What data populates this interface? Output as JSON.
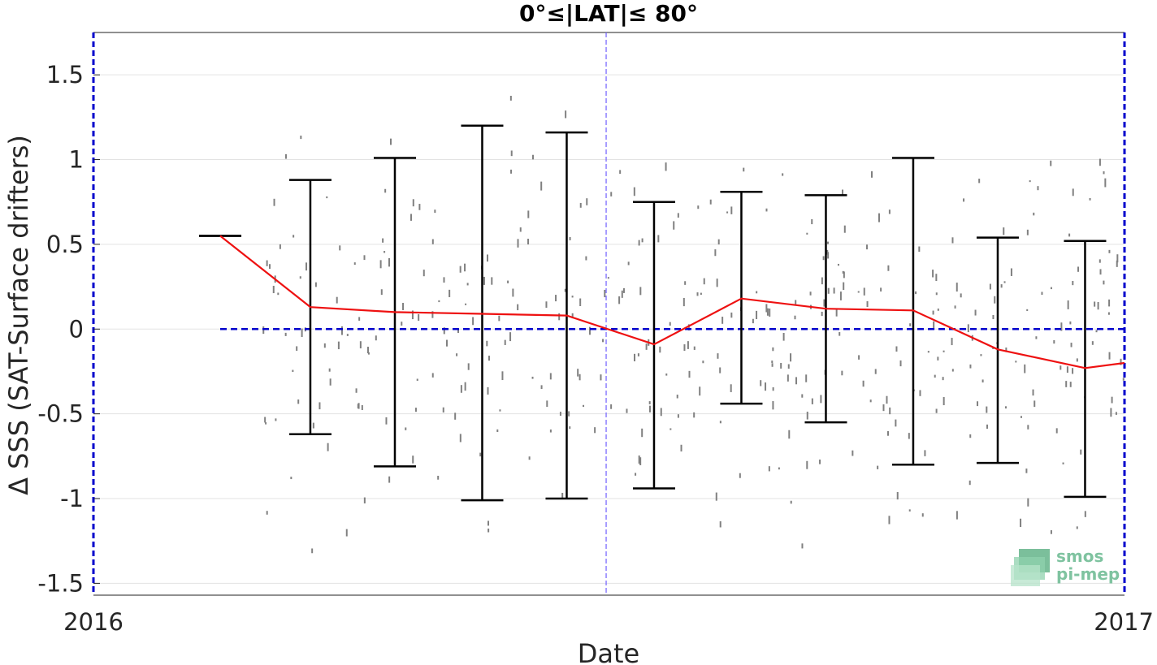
{
  "chart_data": {
    "type": "line",
    "title": "0°≤|LAT|≤ 80°",
    "xlabel": "Date",
    "ylabel": "Δ SSS (SAT-Surface drifters)",
    "x_tick_labels": [
      "2016",
      "2017"
    ],
    "y_ticks": [
      -1.5,
      -1,
      -0.5,
      0,
      0.5,
      1,
      1.5
    ],
    "y_tick_labels": [
      "-1.5",
      "-1",
      "-0.5",
      "0",
      "0.5",
      "1",
      "1.5"
    ],
    "ylim": [
      -1.57,
      1.75
    ],
    "xlim": [
      "2016-01-01",
      "2017-01-01"
    ],
    "grid": "horizontal",
    "series": [
      {
        "style": "red-line",
        "color": "#ee1111",
        "x": [
          "2016-02-15",
          "2016-03-18",
          "2016-04-17",
          "2016-05-18",
          "2016-06-17",
          "2016-07-18",
          "2016-08-18",
          "2016-09-17",
          "2016-10-18",
          "2016-11-17",
          "2016-12-18",
          "2017-01-01"
        ],
        "y": [
          0.55,
          0.13,
          0.1,
          0.09,
          0.08,
          -0.09,
          0.18,
          0.12,
          0.11,
          -0.12,
          -0.23,
          -0.2
        ]
      }
    ],
    "error_bars": {
      "color": "#000000",
      "x": [
        "2016-02-15",
        "2016-03-18",
        "2016-04-17",
        "2016-05-18",
        "2016-06-17",
        "2016-07-18",
        "2016-08-18",
        "2016-09-17",
        "2016-10-18",
        "2016-11-17",
        "2016-12-18"
      ],
      "upper": [
        0.55,
        0.88,
        1.01,
        1.2,
        1.16,
        0.75,
        0.81,
        0.79,
        1.01,
        0.54,
        0.52
      ],
      "lower": [
        0.55,
        -0.62,
        -0.81,
        -1.01,
        -1.0,
        -0.94,
        -0.44,
        -0.55,
        -0.8,
        -0.79,
        -0.99
      ]
    },
    "reference_line": {
      "y": 0,
      "color": "#0000cc",
      "style": "dashed",
      "x_start": "2016-02-15",
      "x_end": "2017-01-01"
    },
    "vertical_markers": [
      {
        "x": "2016-07-01",
        "color": "#7060ff",
        "style": "dashed"
      }
    ],
    "scatter": {
      "color": "#808080",
      "description_hidden": true,
      "x_range": [
        "2016-03-01",
        "2017-01-01"
      ]
    },
    "frame_color": "#0000cc"
  },
  "logo": {
    "line1": "smos",
    "line2": "pi-mep",
    "color": "#7fc3a0"
  }
}
